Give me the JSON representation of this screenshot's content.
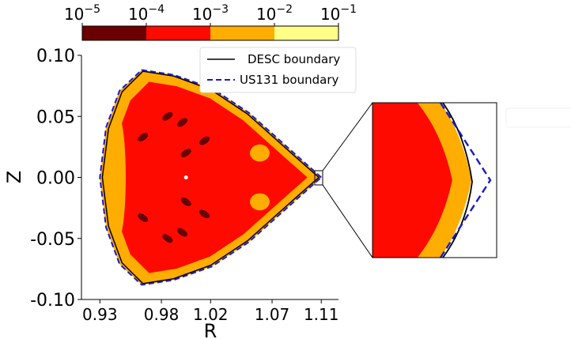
{
  "chart_data": {
    "type": "contour",
    "colorbar": {
      "scale": "log",
      "tick_labels": [
        {
          "base": "10",
          "exp": "−5"
        },
        {
          "base": "10",
          "exp": "−4"
        },
        {
          "base": "10",
          "exp": "−3"
        },
        {
          "base": "10",
          "exp": "−2"
        },
        {
          "base": "10",
          "exp": "−1"
        }
      ],
      "tick_values": [
        1e-05,
        0.0001,
        0.001,
        0.01,
        0.1
      ],
      "level_colors": [
        "#6b0000",
        "#ff0a00",
        "#ffad00",
        "#ffff88"
      ]
    },
    "xlabel": "R",
    "ylabel": "Z",
    "xlim": [
      0.915,
      1.124
    ],
    "ylim": [
      -0.1,
      0.1
    ],
    "xticks": [
      0.93,
      0.98,
      1.02,
      1.07,
      1.11
    ],
    "xtick_labels": [
      "0.93",
      "0.98",
      "1.02",
      "1.07",
      "1.11"
    ],
    "yticks": [
      0.1,
      0.05,
      0.0,
      -0.05,
      -0.1
    ],
    "ytick_labels": [
      "0.10",
      "0.05",
      "0.00",
      "-0.05",
      "-0.10"
    ],
    "series": [
      {
        "name": "DESC boundary",
        "style": "solid",
        "color": "#000000",
        "points": [
          [
            1.108,
            0.0
          ],
          [
            1.09,
            0.016
          ],
          [
            1.07,
            0.034
          ],
          [
            1.05,
            0.052
          ],
          [
            1.02,
            0.072
          ],
          [
            0.99,
            0.083
          ],
          [
            0.965,
            0.087
          ],
          [
            0.948,
            0.07
          ],
          [
            0.937,
            0.04
          ],
          [
            0.932,
            0.0
          ],
          [
            0.937,
            -0.04
          ],
          [
            0.948,
            -0.07
          ],
          [
            0.965,
            -0.087
          ],
          [
            0.99,
            -0.083
          ],
          [
            1.02,
            -0.072
          ],
          [
            1.05,
            -0.052
          ],
          [
            1.07,
            -0.034
          ],
          [
            1.09,
            -0.016
          ],
          [
            1.108,
            0.0
          ]
        ]
      },
      {
        "name": "US131 boundary",
        "style": "dashed",
        "color": "#1a1acc",
        "points": [
          [
            1.11,
            0.0
          ],
          [
            1.091,
            0.017
          ],
          [
            1.071,
            0.035
          ],
          [
            1.051,
            0.053
          ],
          [
            1.021,
            0.073
          ],
          [
            0.99,
            0.084
          ],
          [
            0.964,
            0.088
          ],
          [
            0.946,
            0.071
          ],
          [
            0.935,
            0.041
          ],
          [
            0.93,
            0.0
          ],
          [
            0.935,
            -0.041
          ],
          [
            0.946,
            -0.071
          ],
          [
            0.964,
            -0.088
          ],
          [
            0.99,
            -0.084
          ],
          [
            1.021,
            -0.073
          ],
          [
            1.051,
            -0.053
          ],
          [
            1.071,
            -0.035
          ],
          [
            1.091,
            -0.017
          ],
          [
            1.11,
            0.0
          ]
        ]
      }
    ],
    "legend": {
      "placement": "top-right",
      "entries": [
        "DESC boundary",
        "US131 boundary"
      ]
    },
    "inset": {
      "description_region": "zoom of right tip near R=1.11, Z=0.00"
    }
  }
}
